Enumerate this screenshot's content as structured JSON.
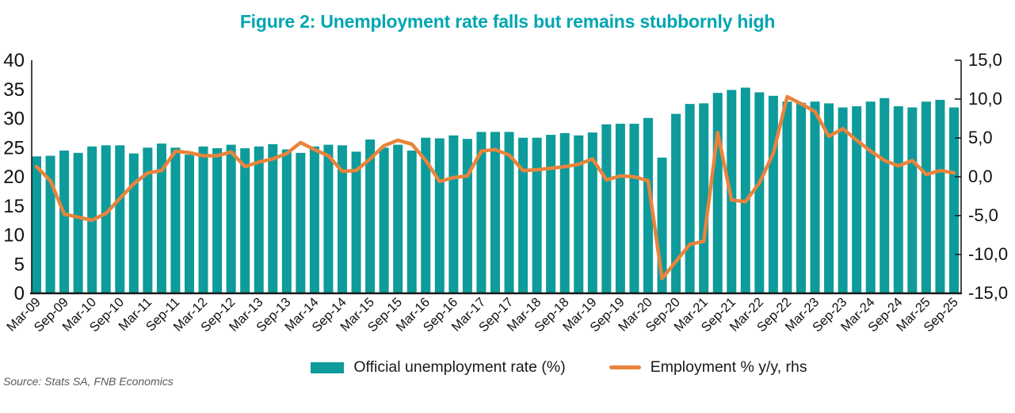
{
  "title": {
    "text": "Figure 2: Unemployment rate falls but remains stubbornly high",
    "color": "#00a6b0"
  },
  "source_note": "Source: Stats SA, FNB Economics",
  "legend": {
    "items": [
      {
        "label": "Official unemployment rate (%)",
        "color": "#0d9b9b",
        "marker": "rect"
      },
      {
        "label": "Employment % y/y, rhs",
        "color": "#e8843c",
        "marker": "line"
      }
    ]
  },
  "colors": {
    "bar": "#0d9b9b",
    "line": "#e8843c",
    "axis": "#1a1a1a"
  },
  "chart_data": {
    "type": "combo",
    "title": "Figure 2: Unemployment rate falls but remains stubbornly high",
    "categories": [
      "Mar-09",
      "Jun-09",
      "Sep-09",
      "Dec-09",
      "Mar-10",
      "Jun-10",
      "Sep-10",
      "Dec-10",
      "Mar-11",
      "Jun-11",
      "Sep-11",
      "Dec-11",
      "Mar-12",
      "Jun-12",
      "Sep-12",
      "Dec-12",
      "Mar-13",
      "Jun-13",
      "Sep-13",
      "Dec-13",
      "Mar-14",
      "Jun-14",
      "Sep-14",
      "Dec-14",
      "Mar-15",
      "Jun-15",
      "Sep-15",
      "Dec-15",
      "Mar-16",
      "Jun-16",
      "Sep-16",
      "Dec-16",
      "Mar-17",
      "Jun-17",
      "Sep-17",
      "Dec-17",
      "Mar-18",
      "Jun-18",
      "Sep-18",
      "Dec-18",
      "Mar-19",
      "Jun-19",
      "Sep-19",
      "Dec-19",
      "Mar-20",
      "Jun-20",
      "Sep-20",
      "Dec-20",
      "Mar-21",
      "Jun-21",
      "Sep-21",
      "Dec-21",
      "Mar-22",
      "Jun-22",
      "Sep-22",
      "Dec-22",
      "Mar-23",
      "Jun-23",
      "Sep-23",
      "Dec-23",
      "Mar-24",
      "Jun-24",
      "Sep-24",
      "Dec-24",
      "Mar-25",
      "Jun-25",
      "Sep-25"
    ],
    "x_ticks": {
      "every": 2,
      "start_index": 0,
      "rotation_deg": -45
    },
    "series": [
      {
        "name": "Official unemployment rate (%)",
        "type": "bar",
        "axis": "left",
        "color": "#0d9b9b",
        "values": [
          23.5,
          23.6,
          24.5,
          24.1,
          25.2,
          25.4,
          25.4,
          24.0,
          25.0,
          25.7,
          25.0,
          23.8,
          25.2,
          24.9,
          25.5,
          24.9,
          25.2,
          25.6,
          24.7,
          24.1,
          25.2,
          25.5,
          25.4,
          24.3,
          26.4,
          25.0,
          25.5,
          24.5,
          26.7,
          26.6,
          27.1,
          26.5,
          27.7,
          27.7,
          27.7,
          26.7,
          26.7,
          27.2,
          27.5,
          27.1,
          27.6,
          29.0,
          29.1,
          29.1,
          30.1,
          23.3,
          30.8,
          32.5,
          32.6,
          34.4,
          34.9,
          35.3,
          34.5,
          33.9,
          32.9,
          32.7,
          32.9,
          32.6,
          31.9,
          32.1,
          32.9,
          33.5,
          32.1,
          31.9,
          32.9,
          33.2,
          31.9
        ]
      },
      {
        "name": "Employment % y/y, rhs",
        "type": "line",
        "axis": "right",
        "color": "#e8843c",
        "values": [
          1.3,
          -0.5,
          -4.8,
          -5.2,
          -5.6,
          -4.7,
          -2.8,
          -0.9,
          0.5,
          0.8,
          3.3,
          3.1,
          2.7,
          2.7,
          3.2,
          1.3,
          1.9,
          2.3,
          3.0,
          4.4,
          3.5,
          2.7,
          0.7,
          0.8,
          2.3,
          4.0,
          4.7,
          4.2,
          2.1,
          -0.6,
          -0.1,
          0.1,
          3.3,
          3.5,
          2.8,
          0.8,
          0.9,
          1.1,
          1.3,
          1.6,
          2.3,
          -0.4,
          0.1,
          0.0,
          -0.5,
          -13.1,
          -10.9,
          -8.7,
          -8.3,
          5.7,
          -3.0,
          -3.2,
          -0.8,
          3.0,
          10.3,
          9.4,
          8.4,
          5.2,
          6.2,
          4.7,
          3.3,
          2.1,
          1.4,
          2.1,
          0.3,
          0.8,
          0.5
        ]
      }
    ],
    "left_axis": {
      "min": 0,
      "max": 40,
      "tick_step": 5,
      "tick_labels": [
        "0",
        "5",
        "10",
        "15",
        "20",
        "25",
        "30",
        "35",
        "40"
      ]
    },
    "right_axis": {
      "min": -15,
      "max": 15,
      "tick_step": 5,
      "tick_labels": [
        "15,0",
        "10,0",
        "5,0",
        "0,0",
        "-5,0",
        "-10,0",
        "-15,0"
      ],
      "tick_values": [
        15,
        10,
        5,
        0,
        -5,
        -10,
        -15
      ]
    },
    "grid": false,
    "legend_position": "bottom"
  }
}
